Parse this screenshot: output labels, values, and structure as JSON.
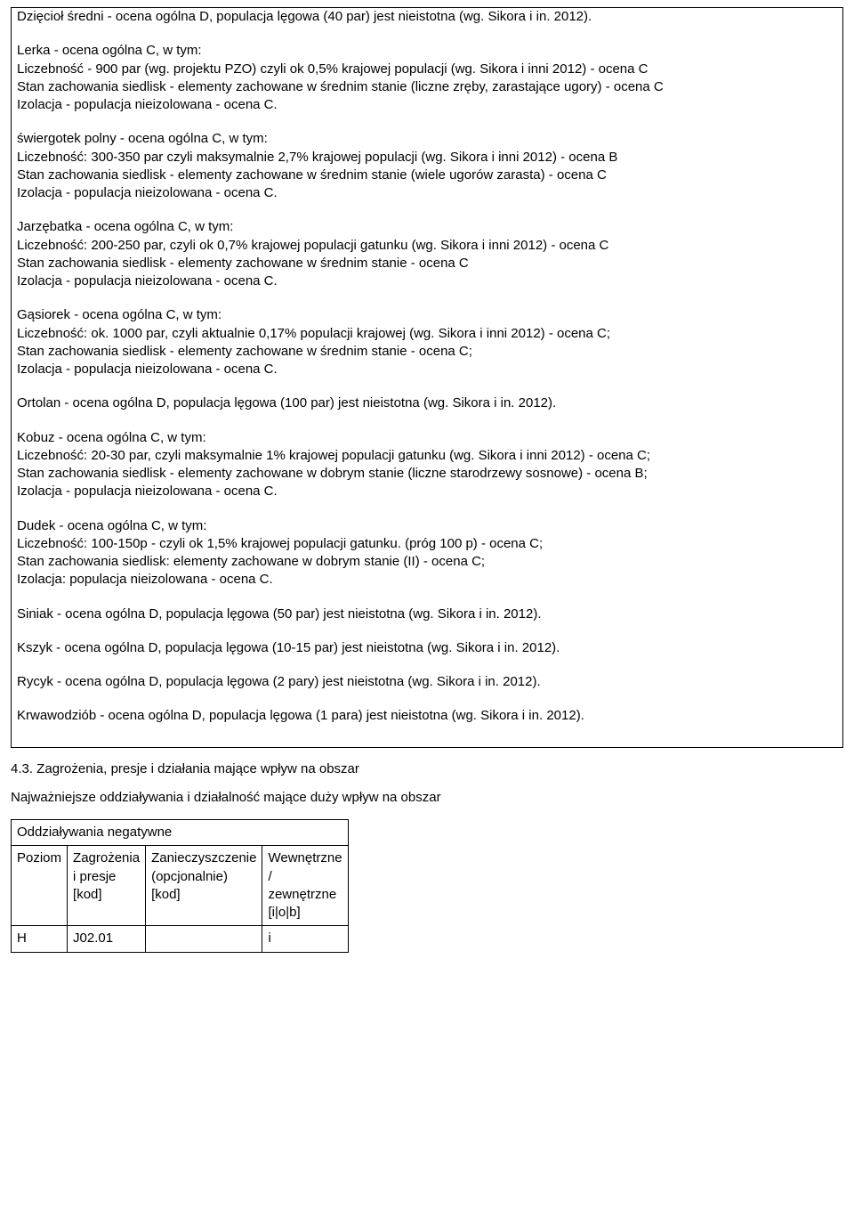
{
  "species": [
    {
      "title": "Dzięcioł średni - ocena ogólna D, populacja lęgowa (40 par) jest nieistotna (wg. Sikora i in. 2012).",
      "lines": []
    },
    {
      "title": "Lerka - ocena ogólna C, w tym:",
      "lines": [
        "Liczebność - 900 par (wg. projektu PZO) czyli ok 0,5% krajowej populacji (wg. Sikora i inni 2012) - ocena C",
        "Stan zachowania siedlisk - elementy zachowane w średnim stanie (liczne zręby, zarastające ugory) - ocena C",
        "Izolacja - populacja nieizolowana - ocena C."
      ]
    },
    {
      "title": "świergotek polny - ocena ogólna C, w tym:",
      "lines": [
        "Liczebność: 300-350 par czyli maksymalnie 2,7% krajowej populacji (wg. Sikora i inni 2012) - ocena B",
        "Stan zachowania siedlisk - elementy zachowane w średnim stanie (wiele ugorów zarasta) - ocena C",
        "Izolacja - populacja nieizolowana - ocena C."
      ]
    },
    {
      "title": "Jarzębatka - ocena ogólna C, w tym:",
      "lines": [
        "Liczebność: 200-250 par, czyli ok 0,7% krajowej populacji gatunku (wg. Sikora i inni 2012) - ocena C",
        "Stan zachowania siedlisk - elementy zachowane w średnim stanie - ocena C",
        "Izolacja - populacja nieizolowana - ocena C."
      ]
    },
    {
      "title": "Gąsiorek - ocena ogólna C, w tym:",
      "lines": [
        "Liczebność: ok. 1000 par, czyli aktualnie 0,17% populacji krajowej (wg. Sikora i inni 2012) - ocena C;",
        "Stan zachowania siedlisk - elementy zachowane w średnim stanie - ocena C;",
        "Izolacja - populacja nieizolowana - ocena C."
      ]
    },
    {
      "title": "Ortolan - ocena ogólna D, populacja lęgowa (100 par) jest nieistotna (wg. Sikora i in. 2012).",
      "lines": []
    },
    {
      "title": "Kobuz - ocena ogólna C, w tym:",
      "lines": [
        "Liczebność: 20-30 par, czyli maksymalnie 1% krajowej populacji gatunku (wg. Sikora i inni 2012) - ocena C;",
        "Stan zachowania siedlisk - elementy zachowane w dobrym stanie (liczne starodrzewy sosnowe) - ocena B;",
        "Izolacja - populacja nieizolowana - ocena C."
      ]
    },
    {
      "title": "Dudek - ocena ogólna C, w tym:",
      "lines": [
        "Liczebność: 100-150p - czyli ok 1,5% krajowej populacji gatunku. (próg 100 p) - ocena C;",
        "Stan zachowania siedlisk: elementy zachowane w dobrym stanie (II) - ocena C;",
        "Izolacja: populacja nieizolowana - ocena C."
      ]
    },
    {
      "title": "Siniak - ocena ogólna D, populacja lęgowa (50 par) jest nieistotna (wg. Sikora i in. 2012).",
      "lines": []
    },
    {
      "title": "Kszyk - ocena ogólna D, populacja lęgowa (10-15 par) jest nieistotna (wg. Sikora i in. 2012).",
      "lines": []
    },
    {
      "title": "Rycyk - ocena ogólna D, populacja lęgowa (2 pary) jest nieistotna (wg. Sikora i in. 2012).",
      "lines": []
    },
    {
      "title": "Krwawodziób - ocena ogólna D, populacja lęgowa (1 para) jest nieistotna (wg. Sikora i in. 2012).",
      "lines": []
    }
  ],
  "section43": "4.3. Zagrożenia, presje i działania mające wpływ na obszar",
  "subHeading": "Najważniejsze oddziaływania i działalność mające duży wpływ na obszar",
  "table": {
    "caption": "Oddziaływania negatywne",
    "headers": {
      "level": "Poziom",
      "threats": "Zagrożenia i presje [kod]",
      "pollution": "Zanieczyszczenie (opcjonalnie) [kod]",
      "inout": "Wewnętrzne / zewnętrzne [i|o|b]"
    },
    "row": {
      "level": "H",
      "threats": "J02.01",
      "pollution": "",
      "inout": "i"
    }
  }
}
